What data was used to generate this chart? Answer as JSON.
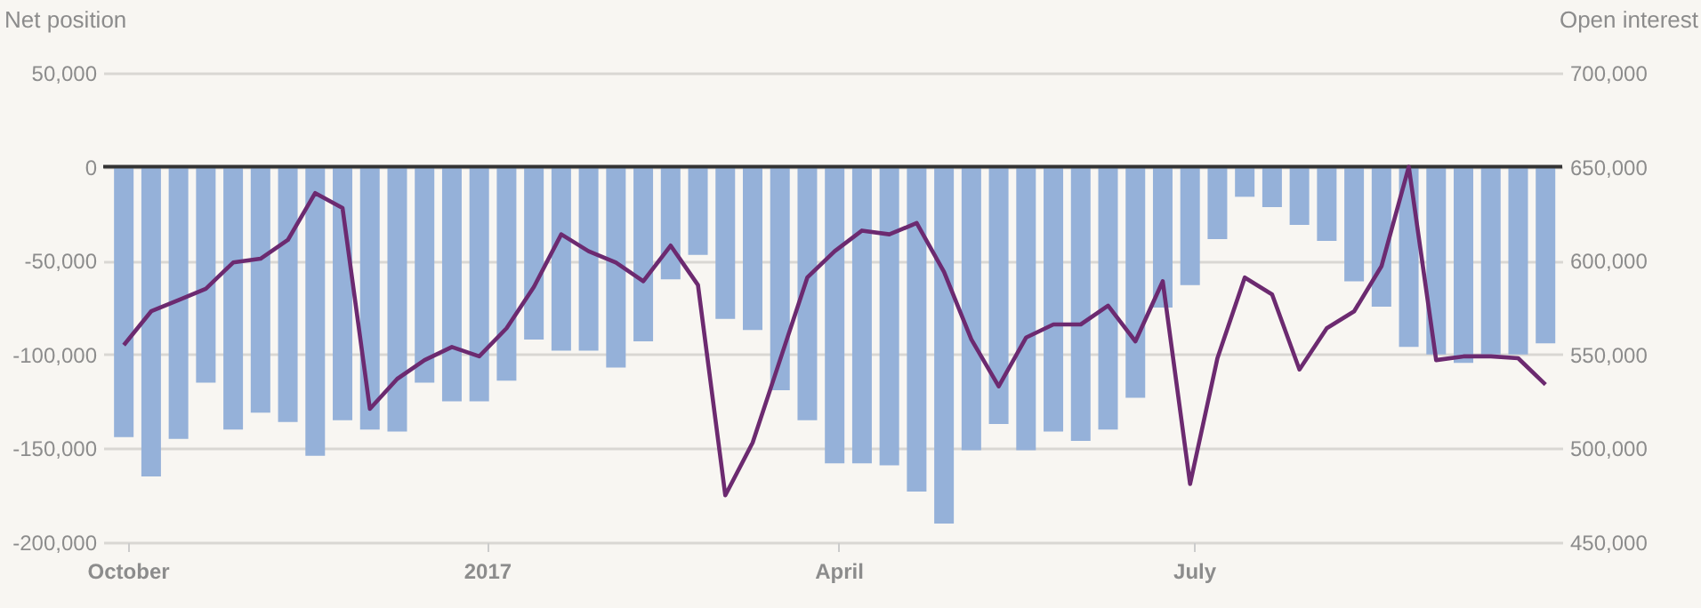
{
  "chart_data": {
    "type": "bar",
    "ylabel": "Net position",
    "y2label": "Open interest",
    "x": [
      "2016-09-30",
      "2016-10-07",
      "2016-10-14",
      "2016-10-21",
      "2016-10-28",
      "2016-11-04",
      "2016-11-11",
      "2016-11-18",
      "2016-11-25",
      "2016-12-02",
      "2016-12-09",
      "2016-12-16",
      "2016-12-23",
      "2016-12-30",
      "2017-01-06",
      "2017-01-13",
      "2017-01-20",
      "2017-01-27",
      "2017-02-03",
      "2017-02-10",
      "2017-02-17",
      "2017-02-24",
      "2017-03-03",
      "2017-03-10",
      "2017-03-17",
      "2017-03-24",
      "2017-03-31",
      "2017-04-07",
      "2017-04-14",
      "2017-04-21",
      "2017-04-28",
      "2017-05-05",
      "2017-05-12",
      "2017-05-19",
      "2017-05-26",
      "2017-06-02",
      "2017-06-09",
      "2017-06-16",
      "2017-06-23",
      "2017-06-30",
      "2017-07-07",
      "2017-07-14",
      "2017-07-21",
      "2017-07-28",
      "2017-08-04",
      "2017-08-11",
      "2017-08-18",
      "2017-08-25",
      "2017-09-01",
      "2017-09-08",
      "2017-09-15",
      "2017-09-22",
      "2017-09-29"
    ],
    "series": [
      {
        "type": "bar",
        "color": "#95b1d9",
        "values": [
          -144000,
          -165000,
          -145000,
          -115000,
          -140000,
          -131000,
          -136000,
          -154000,
          -135000,
          -140000,
          -141000,
          -115000,
          -125000,
          -125000,
          -114000,
          -92000,
          -98000,
          -98000,
          -107000,
          -93000,
          -60000,
          -47000,
          -81000,
          -87000,
          -119000,
          -135000,
          -158000,
          -158000,
          -159000,
          -173000,
          -190000,
          -151000,
          -137000,
          -151000,
          -141000,
          -146000,
          -140000,
          -123000,
          -75000,
          -63000,
          -38500,
          -16000,
          -21500,
          -31000,
          -39500,
          -61000,
          -74500,
          -96000,
          -100000,
          -104500,
          -100000,
          -100000,
          -94000
        ]
      },
      {
        "type": "line",
        "axis": "y2",
        "color": "#6c2a70",
        "values": [
          555000,
          573000,
          579000,
          585000,
          599000,
          601000,
          611000,
          636000,
          628000,
          521000,
          537000,
          547000,
          554000,
          549000,
          564000,
          586000,
          614000,
          605000,
          599000,
          589000,
          608000,
          587000,
          475000,
          503000,
          547000,
          591000,
          605000,
          616000,
          614000,
          620000,
          594000,
          558000,
          533000,
          559000,
          566000,
          566000,
          576000,
          557000,
          589000,
          481000,
          548000,
          591000,
          582000,
          542000,
          564000,
          573000,
          597000,
          650000,
          547000,
          549000,
          549000,
          548000,
          534000
        ]
      }
    ],
    "xlim": [
      "2016-09-27",
      "2017-10-01"
    ],
    "xticks": [
      {
        "value": "2016-10-01",
        "label": "October"
      },
      {
        "value": "2017-01-01",
        "label": "2017"
      },
      {
        "value": "2017-04-01",
        "label": "April"
      },
      {
        "value": "2017-07-01",
        "label": "July"
      }
    ],
    "ylim": [
      -200000,
      50000
    ],
    "yticks": [
      {
        "value": -200000,
        "label": "-200,000"
      },
      {
        "value": -150000,
        "label": "-150,000"
      },
      {
        "value": -100000,
        "label": "-100,000"
      },
      {
        "value": -50000,
        "label": "-50,000"
      },
      0,
      {
        "value": 50000,
        "label": "50,000"
      }
    ],
    "y2lim": [
      450000,
      700000
    ],
    "y2ticks": [
      {
        "value": 450000,
        "label": "450,000"
      },
      {
        "value": 500000,
        "label": "500,000"
      },
      {
        "value": 550000,
        "label": "550,000"
      },
      {
        "value": 600000,
        "label": "600,000"
      },
      {
        "value": 650000,
        "label": "650,000"
      },
      {
        "value": 700000,
        "label": "700,000"
      }
    ],
    "grid": "y",
    "ref_lines": [
      {
        "axis": "y",
        "value": 0,
        "color": "#333333"
      }
    ]
  }
}
